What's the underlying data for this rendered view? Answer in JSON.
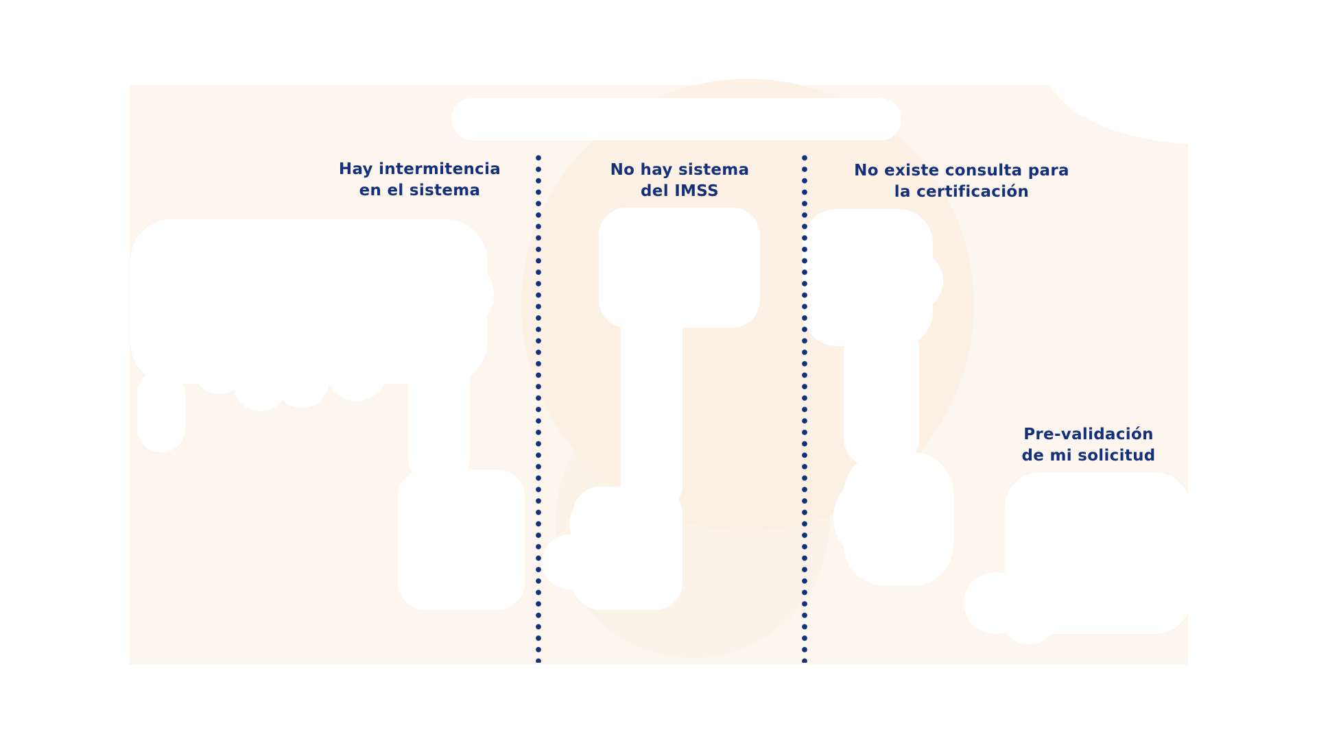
{
  "colors": {
    "text_navy": "#14307a",
    "divider_dot": "#14307a",
    "background_tint": "#fdf6ef",
    "background_blob": "#fbeee0",
    "white": "#ffffff"
  },
  "labels": [
    {
      "line1": "Hay intermitencia",
      "line2": "en el sistema"
    },
    {
      "line1": "No hay sistema",
      "line2": "del IMSS"
    },
    {
      "line1": "No existe consulta para",
      "line2": "la certificación"
    },
    {
      "line1": "Pre-validación",
      "line2": "de mi solicitud"
    }
  ]
}
